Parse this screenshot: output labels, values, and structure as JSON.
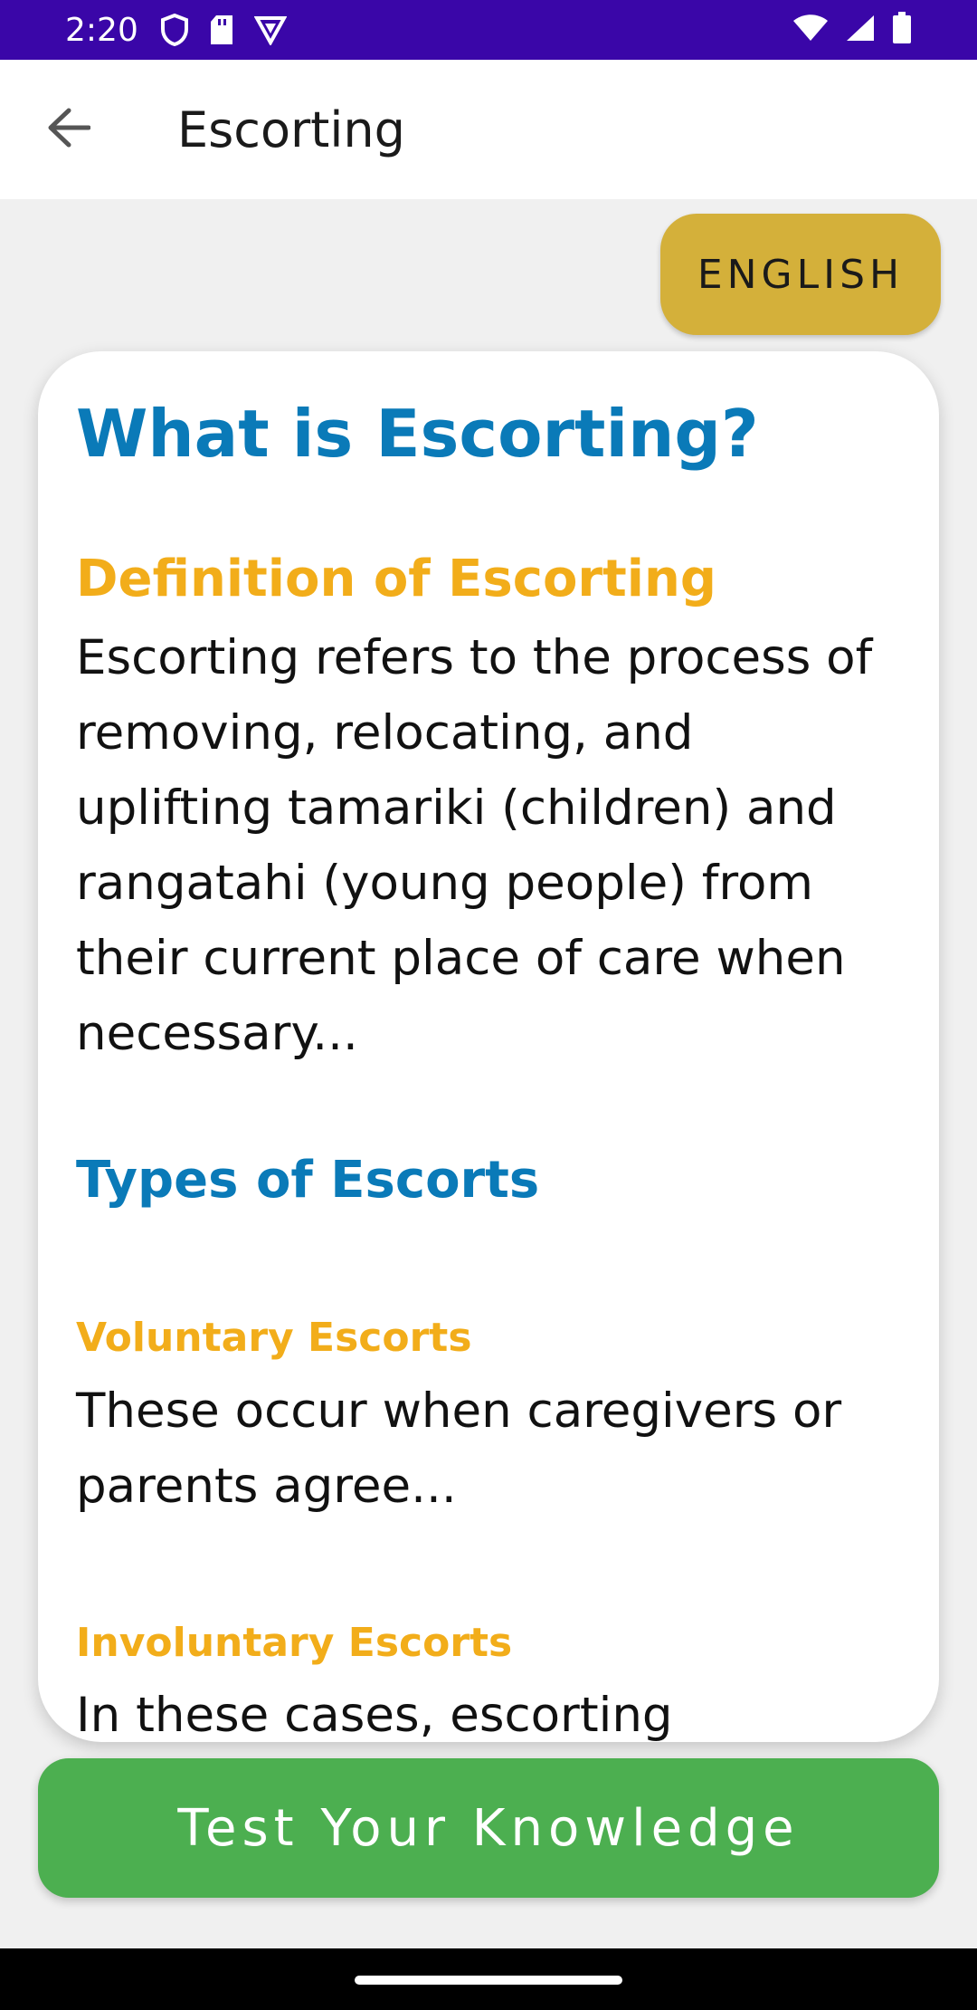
{
  "status_bar": {
    "time": "2:20",
    "background": "#3a06a8"
  },
  "app_bar": {
    "title": "Escorting",
    "back_icon": "arrow-back-icon"
  },
  "language_button": {
    "label": "ENGLISH",
    "color": "#d4b03a"
  },
  "content": {
    "main_heading": "What is Escorting?",
    "definition_heading": "Definition of Escorting",
    "definition_text": "Escorting refers to the process of removing, relocating, and uplifting tamariki (children) and rangatahi (young people) from their current place of care when necessary...",
    "types_heading": "Types of Escorts",
    "voluntary_heading": "Voluntary Escorts",
    "voluntary_text": "These occur when caregivers or parents agree...",
    "involuntary_heading": "Involuntary Escorts",
    "involuntary_text": "In these cases, escorting"
  },
  "test_button": {
    "label": "Test Your Knowledge",
    "color": "#4caf50"
  },
  "colors": {
    "heading_blue": "#0a7ab8",
    "heading_orange": "#f2ad1a"
  }
}
